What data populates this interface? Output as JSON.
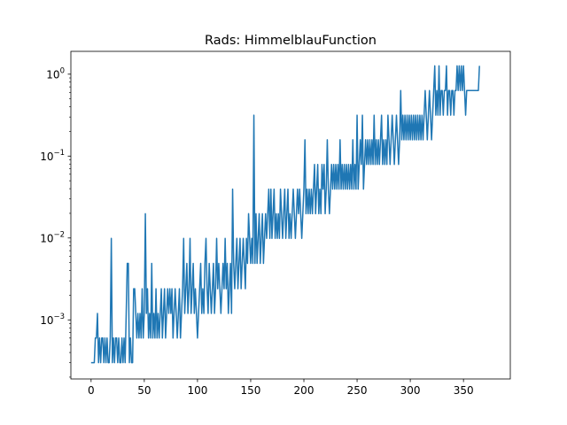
{
  "chart_data": {
    "type": "line",
    "title": "Rads: HimmelblauFunction",
    "xlabel": "",
    "ylabel": "",
    "xlim": [
      -19,
      394
    ],
    "ylim": [
      0.00019,
      1.9
    ],
    "yscale": "log",
    "grid": false,
    "x_ticks": [
      0,
      50,
      100,
      150,
      200,
      250,
      300,
      350
    ],
    "x_tick_labels": [
      "0",
      "50",
      "100",
      "150",
      "200",
      "250",
      "300",
      "350"
    ],
    "y_ticks": [
      0.001,
      0.01,
      0.1,
      1
    ],
    "y_tick_labels": [
      {
        "base": "10",
        "exp": "−3"
      },
      {
        "base": "10",
        "exp": "−2"
      },
      {
        "base": "10",
        "exp": "−1"
      },
      {
        "base": "10",
        "exp": "0"
      }
    ],
    "series": [
      {
        "color": "#1f77b4",
        "x_start": 0,
        "x_step": 1,
        "values": [
          0.0003,
          0.0003,
          0.0003,
          0.0003,
          0.0006,
          0.0006,
          0.0012,
          0.0003,
          0.0006,
          0.0003,
          0.0006,
          0.0006,
          0.0003,
          0.0006,
          0.0003,
          0.0006,
          0.0003,
          0.0003,
          0.0006,
          0.0099,
          0.0003,
          0.0006,
          0.0003,
          0.0006,
          0.0006,
          0.0003,
          0.0006,
          0.0003,
          0.0003,
          0.0006,
          0.0003,
          0.0006,
          0.0003,
          0.0012,
          0.0049,
          0.0049,
          0.0003,
          0.0006,
          0.0003,
          0.0003,
          0.0024,
          0.0024,
          0.0012,
          0.0006,
          0.0012,
          0.0006,
          0.0012,
          0.0006,
          0.0024,
          0.0006,
          0.0012,
          0.0198,
          0.0012,
          0.0024,
          0.0006,
          0.0012,
          0.0006,
          0.0049,
          0.0006,
          0.0012,
          0.0006,
          0.0024,
          0.0006,
          0.0012,
          0.0006,
          0.0012,
          0.0024,
          0.0006,
          0.0012,
          0.0024,
          0.0006,
          0.0012,
          0.0024,
          0.0012,
          0.0024,
          0.0012,
          0.0024,
          0.0006,
          0.0012,
          0.0024,
          0.0012,
          0.0006,
          0.0012,
          0.0024,
          0.0006,
          0.0012,
          0.0024,
          0.0099,
          0.0012,
          0.0024,
          0.0049,
          0.0012,
          0.0024,
          0.0099,
          0.0012,
          0.0024,
          0.0049,
          0.0012,
          0.0024,
          0.0012,
          0.0006,
          0.0012,
          0.0024,
          0.0049,
          0.0012,
          0.0024,
          0.0012,
          0.0049,
          0.0099,
          0.0024,
          0.0012,
          0.0049,
          0.0024,
          0.0012,
          0.0024,
          0.0049,
          0.0012,
          0.0024,
          0.0099,
          0.0024,
          0.0049,
          0.0024,
          0.0012,
          0.0024,
          0.0049,
          0.0024,
          0.0099,
          0.0024,
          0.0049,
          0.0012,
          0.0024,
          0.0049,
          0.0012,
          0.0395,
          0.0049,
          0.0024,
          0.0049,
          0.0099,
          0.0024,
          0.0049,
          0.0099,
          0.0024,
          0.0049,
          0.0099,
          0.0049,
          0.0024,
          0.0099,
          0.0049,
          0.0198,
          0.0099,
          0.0049,
          0.0099,
          0.0049,
          0.3159,
          0.0049,
          0.0198,
          0.0049,
          0.0099,
          0.0198,
          0.0049,
          0.0099,
          0.0198,
          0.0049,
          0.0099,
          0.0198,
          0.0099,
          0.0198,
          0.0395,
          0.0099,
          0.0395,
          0.0099,
          0.0198,
          0.0395,
          0.0099,
          0.0198,
          0.0099,
          0.0198,
          0.0099,
          0.0395,
          0.0198,
          0.0099,
          0.0198,
          0.0395,
          0.0099,
          0.0198,
          0.0395,
          0.0099,
          0.0198,
          0.0099,
          0.0198,
          0.0395,
          0.0198,
          0.0099,
          0.0198,
          0.0395,
          0.0198,
          0.0395,
          0.0198,
          0.0099,
          0.0198,
          0.0395,
          0.158,
          0.0198,
          0.0395,
          0.0198,
          0.0395,
          0.0198,
          0.0395,
          0.0198,
          0.0395,
          0.079,
          0.0198,
          0.0395,
          0.079,
          0.0198,
          0.0395,
          0.0198,
          0.079,
          0.0395,
          0.079,
          0.0198,
          0.0395,
          0.158,
          0.0395,
          0.0198,
          0.0395,
          0.079,
          0.0395,
          0.079,
          0.0395,
          0.079,
          0.0395,
          0.079,
          0.0395,
          0.158,
          0.0395,
          0.079,
          0.0395,
          0.079,
          0.0395,
          0.079,
          0.0395,
          0.079,
          0.0395,
          0.079,
          0.0395,
          0.158,
          0.0395,
          0.079,
          0.0395,
          0.3159,
          0.0395,
          0.079,
          0.158,
          0.079,
          0.3159,
          0.0395,
          0.079,
          0.158,
          0.079,
          0.158,
          0.079,
          0.158,
          0.079,
          0.158,
          0.079,
          0.3159,
          0.079,
          0.158,
          0.079,
          0.158,
          0.079,
          0.158,
          0.3159,
          0.079,
          0.158,
          0.079,
          0.158,
          0.079,
          0.3159,
          0.158,
          0.079,
          0.158,
          0.3159,
          0.158,
          0.079,
          0.158,
          0.3159,
          0.158,
          0.079,
          0.158,
          0.6318,
          0.158,
          0.3159,
          0.158,
          0.3159,
          0.158,
          0.3159,
          0.158,
          0.3159,
          0.158,
          0.3159,
          0.158,
          0.3159,
          0.158,
          0.3159,
          0.158,
          0.3159,
          0.158,
          0.3159,
          0.158,
          0.3159,
          0.158,
          0.3159,
          0.6318,
          0.3159,
          0.158,
          0.3159,
          0.6318,
          0.3159,
          0.158,
          0.3159,
          0.6318,
          1.2637,
          0.3159,
          0.6318,
          0.3159,
          1.2637,
          0.3159,
          0.6318,
          0.6318,
          0.3159,
          0.6318,
          0.6318,
          1.2637,
          0.3159,
          0.6318,
          0.6318,
          0.3159,
          0.6318,
          0.6318,
          0.3159,
          0.6318,
          0.6318,
          1.2637,
          0.6318,
          1.2637,
          0.6318,
          1.2637,
          0.6318,
          1.2637,
          0.6318,
          0.3159,
          0.6318,
          0.6318,
          0.6318,
          0.6318,
          0.6318,
          0.6318,
          0.6318,
          0.6318,
          0.6318,
          0.6318,
          0.6318,
          0.6318,
          1.2637
        ]
      }
    ]
  }
}
